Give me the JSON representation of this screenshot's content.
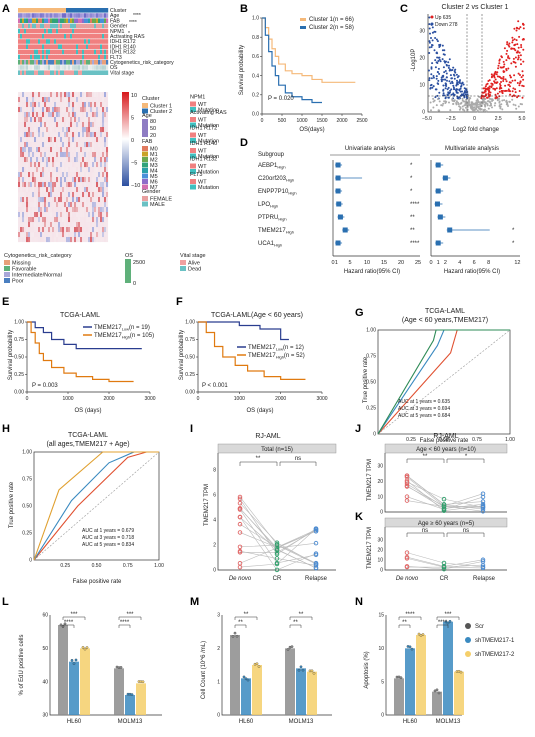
{
  "panels": {
    "A": {
      "letter": "A",
      "track_labels": [
        "Cluster",
        "Age",
        "FAB",
        "Gender",
        "NPM1",
        "Activating RAS",
        "IDH1 R172",
        "IDH1 R140",
        "IDH1 R132",
        "FLT3",
        "Cytogenetics_risk_category",
        "OS",
        "Vital stage"
      ],
      "sig_age": "****",
      "sig_fab": "****",
      "sig_npm1": "*",
      "colorbar_ticks": [
        "10",
        "5",
        "0",
        "−5",
        "−10"
      ],
      "legend": {
        "cluster": {
          "title": "Cluster",
          "items": [
            "Cluster 1",
            "Cluster 2"
          ],
          "colors": [
            "#f5b97a",
            "#2a6fb0"
          ]
        },
        "age": {
          "title": "Age",
          "ticks": [
            "80",
            "50",
            "20"
          ]
        },
        "fab": {
          "title": "FAB",
          "items": [
            "M0",
            "M1",
            "M2",
            "M3",
            "M4",
            "M5",
            "M6",
            "M7"
          ],
          "colors": [
            "#e07a5f",
            "#c9a227",
            "#6aa84f",
            "#2fa37a",
            "#2aa0a8",
            "#4a90d9",
            "#8e6cc9",
            "#d36fb0"
          ]
        },
        "gender": {
          "title": "Gender",
          "items": [
            "FEMALE",
            "MALE"
          ],
          "colors": [
            "#e8a0a0",
            "#6ac1c4"
          ]
        },
        "npm1": {
          "title": "NPM1",
          "items": [
            "WT",
            "Mutation"
          ],
          "colors": [
            "#f08080",
            "#40c0c0"
          ]
        },
        "ras": {
          "title": "Activating RAS",
          "items": [
            "WT",
            "Mutation"
          ],
          "colors": [
            "#f08080",
            "#40c0c0"
          ]
        },
        "r172": {
          "title": "IDH1 R172",
          "items": [
            "WT",
            "Mutation"
          ],
          "colors": [
            "#f08080",
            "#40c0c0"
          ]
        },
        "r140": {
          "title": "IDH1 R140",
          "items": [
            "WT",
            "Mutation"
          ],
          "colors": [
            "#f08080",
            "#40c0c0"
          ]
        },
        "r132": {
          "title": "IDH1 R132",
          "items": [
            "WT",
            "Mutation"
          ],
          "colors": [
            "#f08080",
            "#40c0c0"
          ]
        },
        "flt3": {
          "title": "FLT3",
          "items": [
            "WT",
            "Mutation"
          ],
          "colors": [
            "#f08080",
            "#40c0c0"
          ]
        },
        "cyto": {
          "title": "Cytogenetics_risk_category",
          "items": [
            "Missing",
            "Favorable",
            "Intermediate/Normal",
            "Poor"
          ],
          "colors": [
            "#e8a07a",
            "#5fb07a",
            "#a8a8d8",
            "#4a7fc0"
          ]
        },
        "os": {
          "title": "OS",
          "ticks": [
            "2500",
            "0"
          ]
        },
        "vital": {
          "title": "Vital stage",
          "items": [
            "Alive",
            "Dead"
          ],
          "colors": [
            "#f0a0a0",
            "#6ac1c4"
          ]
        }
      }
    },
    "B": {
      "letter": "B",
      "legend": [
        "Cluster 1(n = 66)",
        "Cluster 2(n = 58)"
      ],
      "pvalue": "P = 0.020"
    },
    "C": {
      "letter": "C",
      "title": "Cluster 2 vs Cluster 1",
      "up_label": "Up 635",
      "down_label": "Down 278"
    },
    "D": {
      "letter": "D",
      "subgroup_header": "Subgroup",
      "uni_header": "Univariate analysis",
      "multi_header": "Multivariate analysis",
      "genes": [
        "AEBP1",
        "C20orf203",
        "ENPP7P10",
        "LPO",
        "PTPRU",
        "TMEM217",
        "UCA1"
      ],
      "uni_sig": [
        "*",
        "*",
        "*",
        "****",
        "**",
        "**",
        "****"
      ],
      "multi_sig": [
        "",
        "",
        "",
        "",
        "",
        "*",
        "*"
      ],
      "uni_ticks": [
        "0",
        "1",
        "5",
        "10",
        "15",
        "20",
        "25"
      ],
      "multi_ticks": [
        "0",
        "1",
        "2",
        "4",
        "6",
        "8",
        "12"
      ],
      "uni_hr": [
        0.9,
        0.9,
        0.9,
        1.1,
        1.6,
        3.0,
        0.9
      ],
      "multi_hr": [
        1.0,
        2.0,
        1.0,
        0.9,
        1.3,
        2.6,
        1.0
      ]
    },
    "E": {
      "letter": "E",
      "title": "TCGA-LAML",
      "legend": [
        "TMEM217",
        "TMEM217"
      ],
      "legend_n": [
        "(n = 19)",
        "(n = 105)"
      ],
      "pvalue": "P = 0.003"
    },
    "F": {
      "letter": "F",
      "title": "TCGA-LAML(Age < 60 years)",
      "legend": [
        "TMEM217",
        "TMEM217"
      ],
      "legend_n": [
        "(n = 12)",
        "(n = 52)"
      ],
      "pvalue": "P < 0.001"
    },
    "G": {
      "letter": "G",
      "title1": "TCGA-LAML",
      "title2": "(Age < 60 years,TMEM217)",
      "auc": [
        "AUC at 1 years = 0.635",
        "AUC at 3 years = 0.694",
        "AUC at 5 years = 0.684"
      ]
    },
    "H": {
      "letter": "H",
      "title1": "TCGA-LAML",
      "title2": "(all ages,TMEM217 + Age)",
      "auc": [
        "AUC at 1 years = 0.679",
        "AUC at 3 years = 0.718",
        "AUC at 5 years = 0.834"
      ]
    },
    "I": {
      "letter": "I",
      "title": "RJ-AML",
      "box": "Total  (n=15)",
      "sig1": "**",
      "sig2": "ns",
      "cats": [
        "De novo",
        "CR",
        "Relapse"
      ]
    },
    "J": {
      "letter": "J",
      "title": "RJ-AML",
      "box": "Age < 60 years (n=10)",
      "sig1": "**",
      "sig2": "*"
    },
    "K": {
      "letter": "K",
      "box": "Age ≥ 60 years (n=5)",
      "sig1": "ns",
      "sig2": "ns",
      "cats": [
        "De novo",
        "CR",
        "Relapse"
      ]
    },
    "L": {
      "letter": "L",
      "sigs": [
        "***",
        "****",
        "***",
        "****"
      ],
      "cats": [
        "HL60",
        "MOLM13"
      ]
    },
    "M": {
      "letter": "M",
      "sigs": [
        "**",
        "**",
        "**",
        "**"
      ],
      "cats": [
        "HL60",
        "MOLM13"
      ]
    },
    "N": {
      "letter": "N",
      "sigs": [
        "****",
        "**",
        "***",
        "****"
      ],
      "cats": [
        "HL60",
        "MOLM13"
      ],
      "legend": [
        "Scr",
        "shTMEM217-1",
        "shTMEM217-2"
      ]
    }
  },
  "axes": {
    "survival_prob": "Survival probability",
    "os_days_b": "OS(days)",
    "os_days": "OS (days)",
    "neglog10p": "-Log10P",
    "log2fc": "Log2 fold change",
    "hazard": "Hazard ratio(95% CI)",
    "tpr": "True positive rate",
    "fpr": "False positive rate",
    "tpm": "TMEM217 TPM",
    "edu": "% of EdU positive cells",
    "cellcount": "Cell Count (10^6 /mL)",
    "apoptosis": "Apoptosis (%)"
  },
  "ticks": {
    "surv_y": [
      "0.00",
      "0.25",
      "0.50",
      "0.75",
      "1.00"
    ],
    "surv_y_b": [
      "0.0",
      "0.2",
      "0.4",
      "0.6",
      "0.8",
      "1.0"
    ],
    "os_x_b": [
      "0",
      "500",
      "1000",
      "1500",
      "2000",
      "2500"
    ],
    "os_x": [
      "0",
      "1000",
      "2000",
      "3000"
    ],
    "volcano_x": [
      "−5.0",
      "−2.5",
      "0",
      "2.5",
      "5.0"
    ],
    "volcano_y": [
      "0",
      "10",
      "20",
      "30"
    ],
    "roc": [
      "0",
      "0.25",
      "0.50",
      "0.75",
      "1.00"
    ],
    "roc_x": [
      "0.25",
      "0.50",
      "0.75",
      "1.00"
    ],
    "tpm_i": [
      "0",
      "2",
      "4",
      "6",
      "8"
    ],
    "tpm_j": [
      "0",
      "10",
      "20",
      "30"
    ],
    "edu_y": [
      "30",
      "40",
      "50",
      "60"
    ],
    "cc_y": [
      "0",
      "1",
      "2",
      "3"
    ],
    "apo_y": [
      "0",
      "5",
      "10",
      "15"
    ]
  },
  "chart_data": [
    {
      "type": "line",
      "title": "",
      "xlabel": "OS(days)",
      "ylabel": "Survival probability",
      "xlim": [
        0,
        3000
      ],
      "ylim": [
        0,
        1
      ],
      "series": [
        {
          "name": "Cluster 1(n = 66)",
          "x": [
            0,
            100,
            200,
            300,
            400,
            500,
            700,
            900,
            1200,
            1500,
            1800,
            2400,
            2800
          ],
          "y": [
            1,
            0.9,
            0.78,
            0.68,
            0.6,
            0.52,
            0.45,
            0.42,
            0.4,
            0.36,
            0.33,
            0.33,
            0.33
          ]
        },
        {
          "name": "Cluster 2(n = 58)",
          "x": [
            0,
            100,
            200,
            300,
            400,
            500,
            700,
            900,
            1200,
            1500,
            1800
          ],
          "y": [
            1,
            0.82,
            0.65,
            0.5,
            0.4,
            0.3,
            0.22,
            0.18,
            0.15,
            0.12,
            0.12
          ]
        }
      ]
    },
    {
      "type": "line",
      "title": "TCGA-LAML",
      "xlabel": "OS (days)",
      "ylabel": "Survival probability",
      "xlim": [
        0,
        3000
      ],
      "ylim": [
        0,
        1
      ],
      "series": [
        {
          "name": "TMEM217 Low (n = 19)",
          "x": [
            0,
            200,
            400,
            600,
            900,
            1200,
            2000,
            2800
          ],
          "y": [
            1,
            0.92,
            0.85,
            0.75,
            0.68,
            0.62,
            0.62,
            0.62
          ]
        },
        {
          "name": "TMEM217 High (n = 105)",
          "x": [
            0,
            100,
            200,
            300,
            400,
            600,
            900,
            1200,
            1600,
            2000,
            2600
          ],
          "y": [
            1,
            0.85,
            0.7,
            0.55,
            0.45,
            0.35,
            0.27,
            0.22,
            0.18,
            0.15,
            0.15
          ]
        }
      ]
    },
    {
      "type": "line",
      "title": "TCGA-LAML(Age < 60 years)",
      "xlabel": "OS (days)",
      "ylabel": "Survival probability",
      "xlim": [
        0,
        3000
      ],
      "ylim": [
        0,
        1
      ],
      "series": [
        {
          "name": "TMEM217 Low (n = 12)",
          "x": [
            0,
            500,
            1000,
            1500,
            2000,
            2200
          ],
          "y": [
            1,
            1,
            0.95,
            0.9,
            0.75,
            0.75
          ]
        },
        {
          "name": "TMEM217 High (n = 52)",
          "x": [
            0,
            200,
            400,
            600,
            900,
            1200,
            1600,
            2000,
            2600
          ],
          "y": [
            1,
            0.85,
            0.65,
            0.5,
            0.38,
            0.3,
            0.22,
            0.18,
            0.18
          ]
        }
      ]
    },
    {
      "type": "bar",
      "title": "",
      "xlabel": "",
      "ylabel": "% of EdU positive cells",
      "categories": [
        "HL60",
        "MOLM13"
      ],
      "ylim": [
        30,
        60
      ],
      "series": [
        {
          "name": "Scr",
          "values": [
            57,
            44
          ]
        },
        {
          "name": "shTMEM217-1",
          "values": [
            46,
            36
          ]
        },
        {
          "name": "shTMEM217-2",
          "values": [
            50,
            39.5
          ]
        }
      ]
    },
    {
      "type": "bar",
      "title": "",
      "xlabel": "",
      "ylabel": "Cell Count (10^6 /mL)",
      "categories": [
        "HL60",
        "MOLM13"
      ],
      "ylim": [
        0,
        3
      ],
      "series": [
        {
          "name": "Scr",
          "values": [
            2.4,
            2.0
          ]
        },
        {
          "name": "shTMEM217-1",
          "values": [
            1.1,
            1.4
          ]
        },
        {
          "name": "shTMEM217-2",
          "values": [
            1.5,
            1.3
          ]
        }
      ]
    },
    {
      "type": "bar",
      "title": "",
      "xlabel": "",
      "ylabel": "Apoptosis (%)",
      "categories": [
        "HL60",
        "MOLM13"
      ],
      "ylim": [
        0,
        15
      ],
      "series": [
        {
          "name": "Scr",
          "values": [
            5.5,
            3.5
          ]
        },
        {
          "name": "shTMEM217-1",
          "values": [
            10,
            14
          ]
        },
        {
          "name": "shTMEM217-2",
          "values": [
            12,
            6.5
          ]
        }
      ]
    }
  ]
}
